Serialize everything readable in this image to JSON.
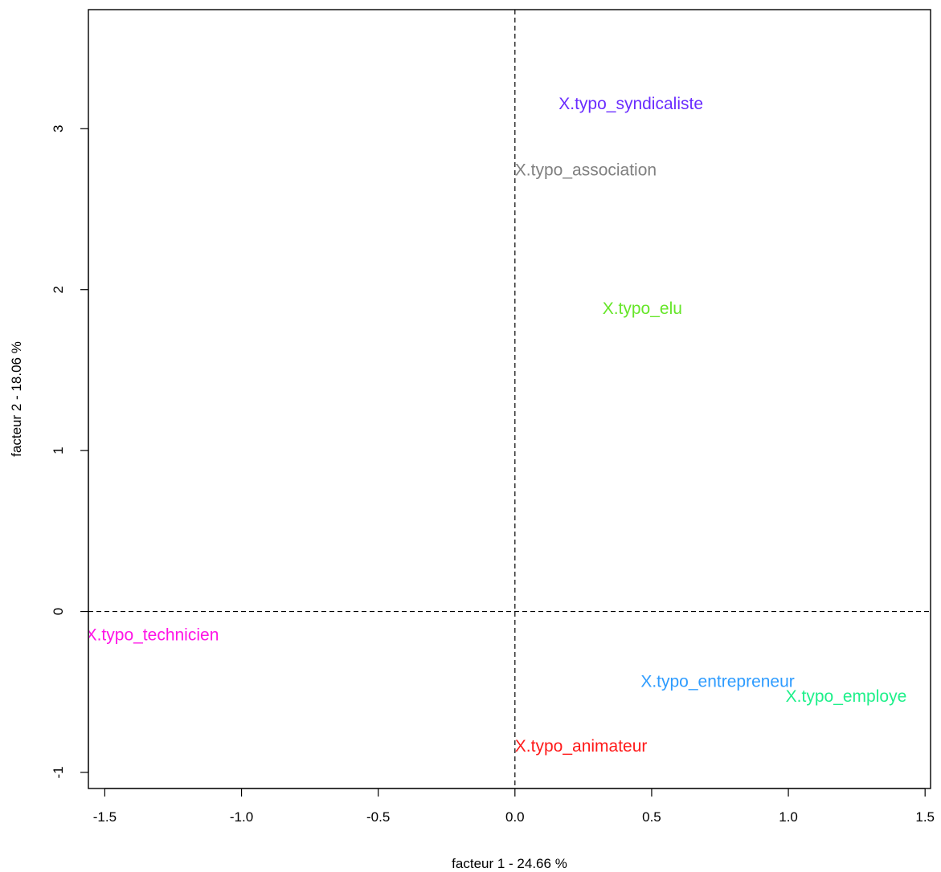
{
  "chart_data": {
    "type": "scatter",
    "title": "",
    "xlabel": "facteur  1  - 24.66 %",
    "ylabel": "facteur  2  - 18.06 %",
    "xlim": [
      -1.56,
      1.52
    ],
    "ylim": [
      -1.1,
      3.74
    ],
    "x_ticks": [
      -1.5,
      -1.0,
      -0.5,
      0.0,
      0.5,
      1.0,
      1.5
    ],
    "x_tick_labels": [
      "-1.5",
      "-1.0",
      "-0.5",
      "0.0",
      "0.5",
      "1.0",
      "1.5"
    ],
    "y_ticks": [
      -1,
      0,
      1,
      2,
      3
    ],
    "y_tick_labels": [
      "-1",
      "0",
      "1",
      "2",
      "3"
    ],
    "reference_lines": {
      "x": 0,
      "y": 0,
      "style": "dashed"
    },
    "grid": false,
    "points": [
      {
        "label": "X.typo_syndicaliste",
        "x": 0.16,
        "y": 3.16,
        "color": "#6a2cff"
      },
      {
        "label": "X.typo_association",
        "x": 0.0,
        "y": 2.75,
        "color": "#808080"
      },
      {
        "label": "X.typo_elu",
        "x": 0.32,
        "y": 1.89,
        "color": "#66e629"
      },
      {
        "label": "X.typo_technicien",
        "x": -1.57,
        "y": -0.14,
        "color": "#ff14e6"
      },
      {
        "label": "X.typo_entrepreneur",
        "x": 0.46,
        "y": -0.43,
        "color": "#2e9cff"
      },
      {
        "label": "X.typo_employe",
        "x": 0.99,
        "y": -0.52,
        "color": "#1ef08a"
      },
      {
        "label": "X.typo_animateur",
        "x": 0.0,
        "y": -0.83,
        "color": "#ff1a1a"
      }
    ]
  }
}
